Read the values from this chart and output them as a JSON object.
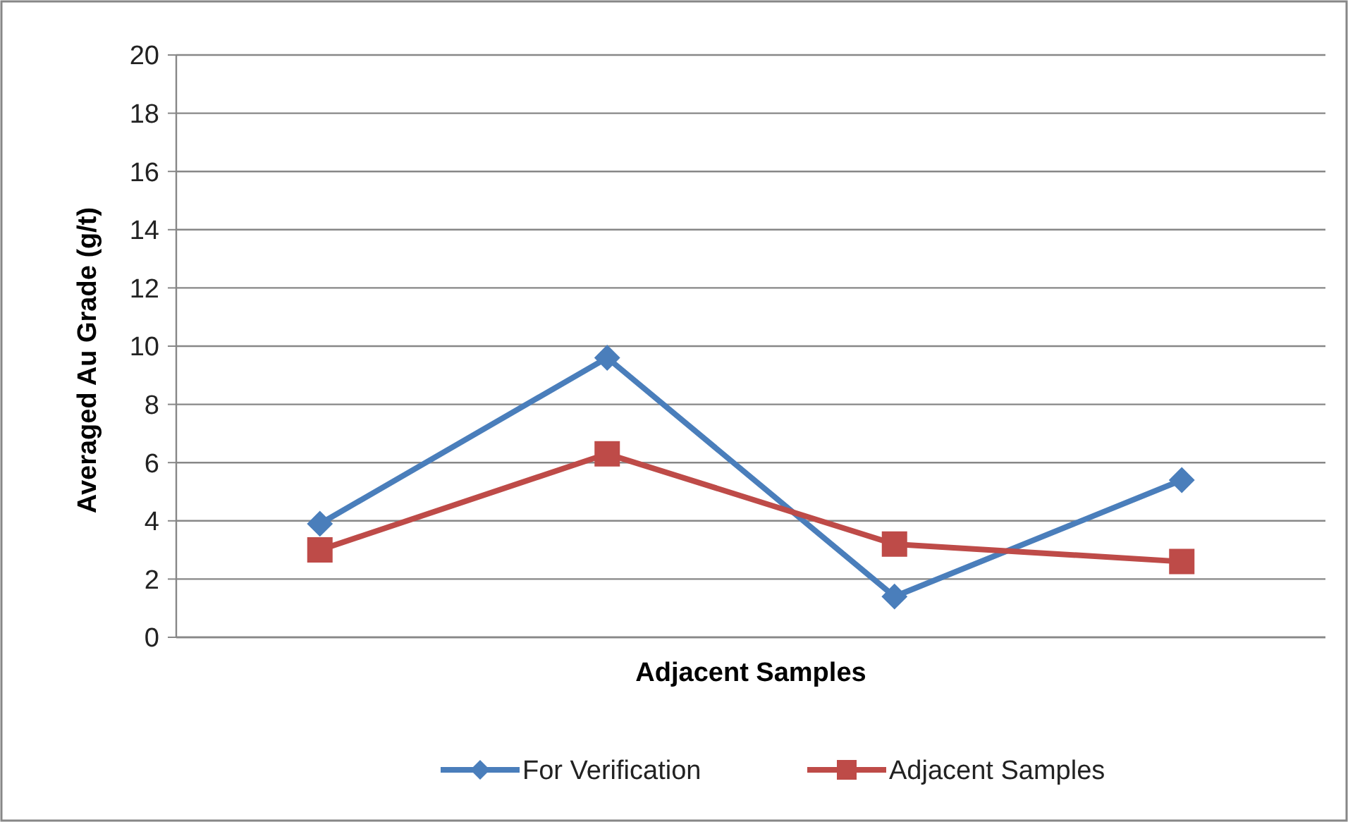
{
  "chart_data": {
    "type": "line",
    "xlabel": "Adjacent Samples",
    "ylabel": "Averaged Au Grade  (g/t)",
    "categories": [
      null,
      null,
      null,
      null
    ],
    "series": [
      {
        "name": "For Verification",
        "color": "#4a7ebb",
        "marker": "diamond",
        "values": [
          3.9,
          9.6,
          1.4,
          5.4
        ]
      },
      {
        "name": "Adjacent Samples",
        "color": "#be4b48",
        "marker": "square",
        "values": [
          3.0,
          6.3,
          3.2,
          2.6
        ]
      }
    ],
    "ylim": [
      0,
      20
    ],
    "yticks": [
      0,
      2,
      4,
      6,
      8,
      10,
      12,
      14,
      16,
      18,
      20
    ],
    "grid": "y",
    "legend": "bottom"
  }
}
